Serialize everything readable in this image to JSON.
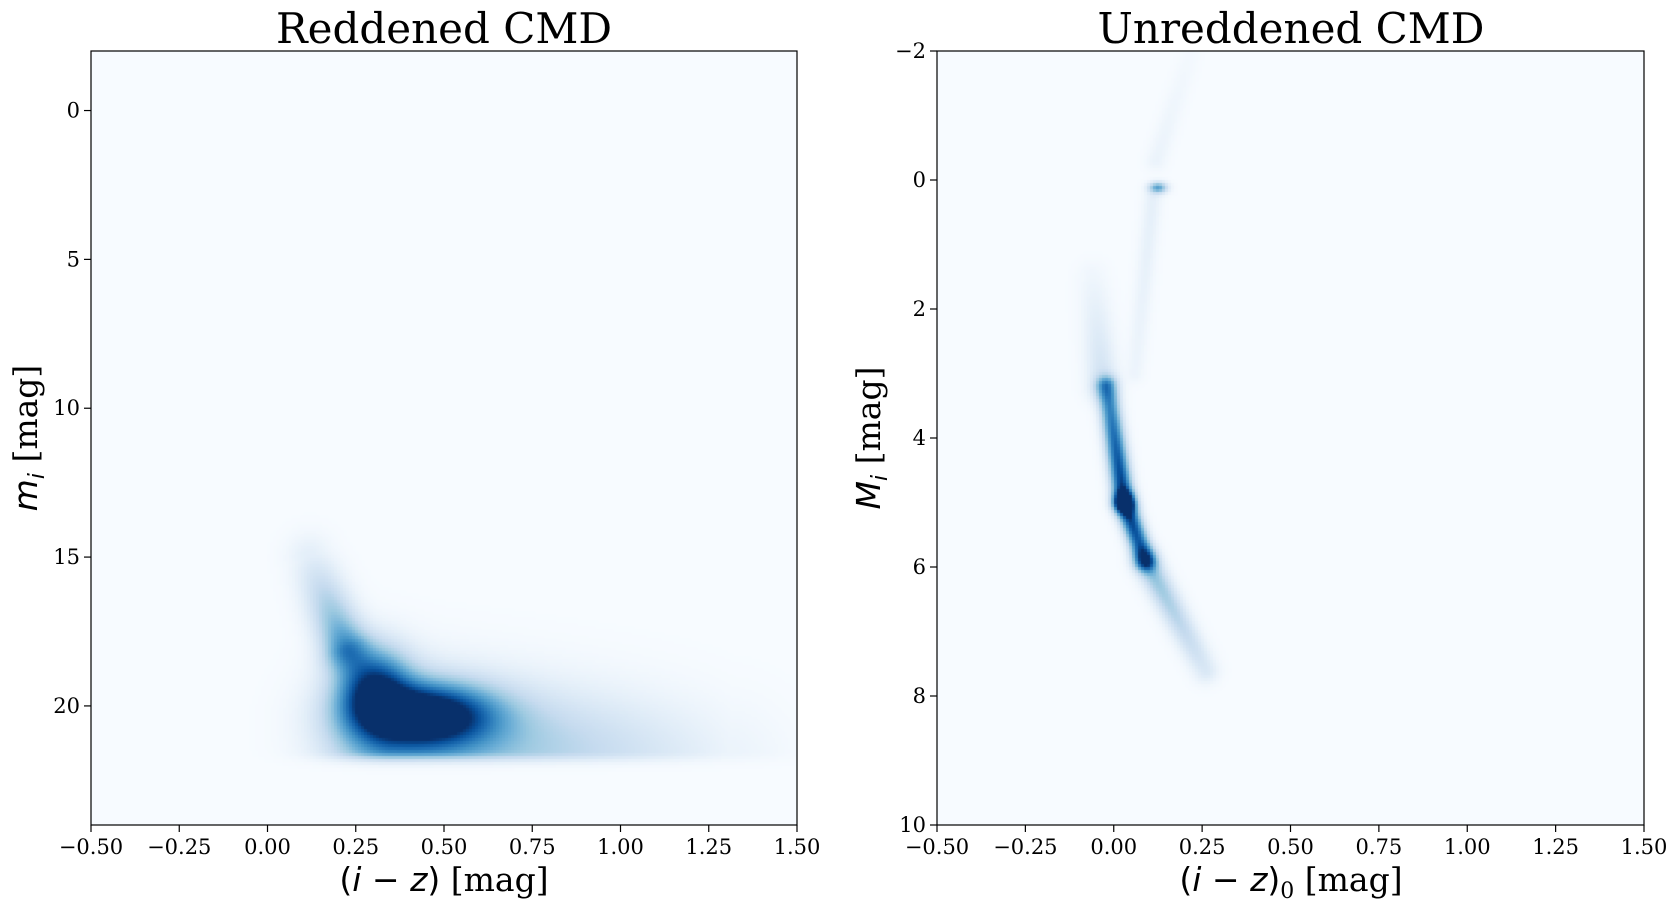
{
  "chart_data": [
    {
      "type": "heatmap",
      "title": "Reddened CMD",
      "xlabel_parts": {
        "open": "(",
        "var1": "i",
        "minus": " − ",
        "var2": "z",
        "close": ")",
        "unit": " [mag]"
      },
      "ylabel_parts": {
        "var": "m",
        "sub": "i",
        "unit": " [mag]"
      },
      "xlim": [
        -0.5,
        1.5
      ],
      "ylim": [
        24,
        -2
      ],
      "y_inverted": true,
      "xticks": [
        -0.5,
        -0.25,
        0.0,
        0.25,
        0.5,
        0.75,
        1.0,
        1.25,
        1.5
      ],
      "xtick_labels": [
        "−0.50",
        "−0.25",
        "0.00",
        "0.25",
        "0.50",
        "0.75",
        "1.00",
        "1.25",
        "1.50"
      ],
      "yticks": [
        0,
        5,
        10,
        15,
        20
      ],
      "ytick_labels": [
        "0",
        "5",
        "10",
        "15",
        "20"
      ],
      "colormap": "Blues",
      "density_features": [
        {
          "kind": "peak",
          "x": 0.45,
          "y": 20.3,
          "sx": 0.13,
          "sy": 0.7,
          "w": 1.0
        },
        {
          "kind": "peak",
          "x": 0.3,
          "y": 19.3,
          "sx": 0.07,
          "sy": 0.9,
          "w": 0.75
        },
        {
          "kind": "band",
          "x0": 0.22,
          "y0": 18.0,
          "x1": 0.12,
          "y1": 15.0,
          "s": 0.045,
          "w0": 0.55,
          "w1": 0.1
        },
        {
          "kind": "band",
          "x0": 0.35,
          "y0": 21.0,
          "x1": 1.3,
          "y1": 21.9,
          "s": 0.12,
          "w0": 0.55,
          "w1": 0.06
        },
        {
          "kind": "cut_edge",
          "y": 21.5
        }
      ]
    },
    {
      "type": "heatmap",
      "title": "Unreddened CMD",
      "xlabel_parts": {
        "open": "(",
        "var1": "i",
        "minus": " − ",
        "var2": "z",
        "close": ")",
        "sub": "0",
        "unit": " [mag]"
      },
      "ylabel_parts": {
        "var": "M",
        "sub": "i",
        "unit": " [mag]"
      },
      "xlim": [
        -0.5,
        1.5
      ],
      "ylim": [
        10,
        -2
      ],
      "y_inverted": true,
      "xticks": [
        -0.5,
        -0.25,
        0.0,
        0.25,
        0.5,
        0.75,
        1.0,
        1.25,
        1.5
      ],
      "xtick_labels": [
        "−0.50",
        "−0.25",
        "0.00",
        "0.25",
        "0.50",
        "0.75",
        "1.00",
        "1.25",
        "1.50"
      ],
      "yticks": [
        -2,
        0,
        2,
        4,
        6,
        8,
        10
      ],
      "ytick_labels": [
        "−2",
        "0",
        "2",
        "4",
        "6",
        "8",
        "10"
      ],
      "colormap": "Blues",
      "density_features": [
        {
          "kind": "band",
          "x0": -0.02,
          "y0": 3.2,
          "x1": 0.03,
          "y1": 5.0,
          "s": 0.02,
          "w0": 0.6,
          "w1": 1.0
        },
        {
          "kind": "band",
          "x0": 0.03,
          "y0": 5.0,
          "x1": 0.09,
          "y1": 5.9,
          "s": 0.02,
          "w0": 1.0,
          "w1": 0.75
        },
        {
          "kind": "band",
          "x0": 0.09,
          "y0": 5.9,
          "x1": 0.26,
          "y1": 7.6,
          "s": 0.025,
          "w0": 0.45,
          "w1": 0.15
        },
        {
          "kind": "band",
          "x0": -0.03,
          "y0": 3.2,
          "x1": -0.06,
          "y1": 1.5,
          "s": 0.03,
          "w0": 0.2,
          "w1": 0.04
        },
        {
          "kind": "band",
          "x0": 0.06,
          "y0": 3.0,
          "x1": 0.11,
          "y1": 0.3,
          "s": 0.018,
          "w0": 0.05,
          "w1": 0.09
        },
        {
          "kind": "band",
          "x0": 0.12,
          "y0": -0.3,
          "x1": 0.22,
          "y1": -2.0,
          "s": 0.02,
          "w0": 0.06,
          "w1": 0.02
        },
        {
          "kind": "peak",
          "x": 0.125,
          "y": 0.12,
          "sx": 0.018,
          "sy": 0.06,
          "w": 0.55
        }
      ]
    }
  ]
}
